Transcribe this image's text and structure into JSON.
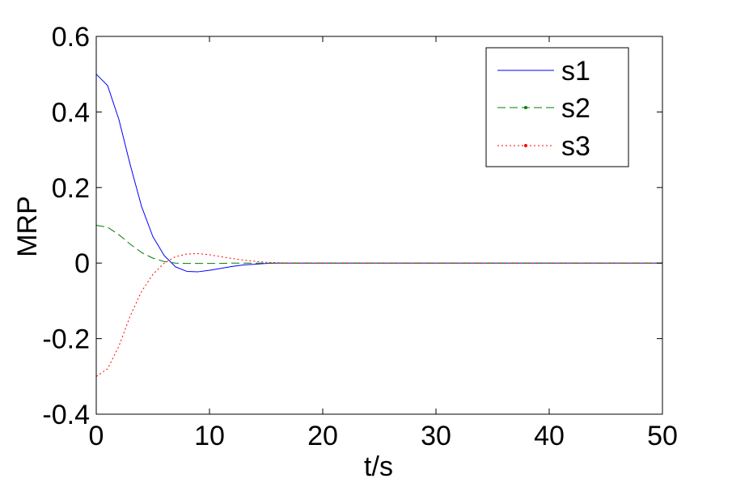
{
  "chart_data": {
    "type": "line",
    "title": "",
    "xlabel": "t/s",
    "ylabel": "MRP",
    "xlim": [
      0,
      50
    ],
    "ylim": [
      -0.4,
      0.6
    ],
    "xticks": [
      0,
      10,
      20,
      30,
      40,
      50
    ],
    "yticks": [
      -0.4,
      -0.2,
      0,
      0.2,
      0.4,
      0.6
    ],
    "xtick_labels": [
      "0",
      "10",
      "20",
      "30",
      "40",
      "50"
    ],
    "ytick_labels": [
      "-0.4",
      "-0.2",
      "0",
      "0.2",
      "0.4",
      "0.6"
    ],
    "grid": false,
    "legend_position": "top-right",
    "x": [
      0,
      1,
      2,
      3,
      4,
      5,
      6,
      7,
      8,
      9,
      10,
      11,
      12,
      13,
      14,
      15,
      16,
      17,
      18,
      19,
      20,
      25,
      30,
      35,
      40,
      45,
      50
    ],
    "series": [
      {
        "name": "s1",
        "color": "#0000ff",
        "dash": "solid",
        "values": [
          0.5,
          0.47,
          0.38,
          0.26,
          0.15,
          0.07,
          0.02,
          -0.01,
          -0.022,
          -0.023,
          -0.019,
          -0.014,
          -0.009,
          -0.005,
          -0.003,
          -0.001,
          0,
          0,
          0,
          0,
          0,
          0,
          0,
          0,
          0,
          0,
          0
        ]
      },
      {
        "name": "s2",
        "color": "#007f00",
        "dash": "dashed",
        "values": [
          0.1,
          0.095,
          0.075,
          0.05,
          0.028,
          0.013,
          0.004,
          0,
          -0.001,
          -0.001,
          -0.001,
          -0.001,
          0,
          0,
          0,
          0,
          0,
          0,
          0,
          0,
          0,
          0,
          0,
          0,
          0,
          0,
          0
        ]
      },
      {
        "name": "s3",
        "color": "#ff0000",
        "dash": "dotted",
        "values": [
          -0.3,
          -0.28,
          -0.22,
          -0.14,
          -0.075,
          -0.03,
          0,
          0.017,
          0.024,
          0.025,
          0.022,
          0.017,
          0.012,
          0.008,
          0.005,
          0.002,
          0.001,
          0,
          0,
          0,
          0,
          0,
          0,
          0,
          0,
          0,
          0
        ]
      }
    ]
  }
}
